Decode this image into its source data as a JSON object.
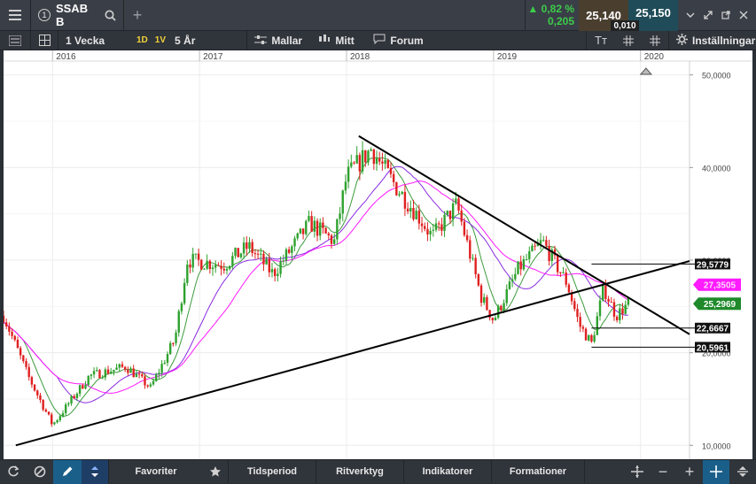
{
  "header": {
    "ticker": "SSAB B",
    "tab_number": "1",
    "change_pct": "▲ 0,82 %",
    "change_abs": "0,205",
    "bid": "25,140",
    "ask": "25,150",
    "spread": "0,010"
  },
  "toolbar": {
    "period_label": "1 Vecka",
    "btn_1d": "1D",
    "btn_1v": "1V",
    "range_label": "5 År",
    "templates_label": "Mallar",
    "mine_label": "Mitt",
    "forum_label": "Forum",
    "settings_label": "Inställningar"
  },
  "bottombar": {
    "favorites": "Favoriter",
    "timeperiod": "Tidsperiod",
    "drawing_tools": "Ritverktyg",
    "indicators": "Indikatorer",
    "formations": "Formationer"
  },
  "colors": {
    "up": "#2ea12e",
    "down": "#e02020",
    "ma_short": "#3c9b3c",
    "ma_mid": "#8a2be2",
    "ma_long": "#ff1aff",
    "price_badge": "#1f8a2a",
    "ma_badge": "#ff1aff"
  },
  "chart_data": {
    "type": "candlestick",
    "x_tick_labels": [
      "2016",
      "2017",
      "2018",
      "2019",
      "2020"
    ],
    "y_tick_labels": [
      "10,0000",
      "20,0000",
      "30,0000",
      "40,0000",
      "50,0000"
    ],
    "ylim": [
      8.5,
      51.5
    ],
    "xlim": [
      "2015-09",
      "2020-05"
    ],
    "key_points": [
      {
        "date": "2015-09",
        "close": 24.0
      },
      {
        "date": "2015-11",
        "close": 17.5
      },
      {
        "date": "2016-01",
        "close": 12.2
      },
      {
        "date": "2016-04",
        "close": 17.5
      },
      {
        "date": "2016-07",
        "close": 18.5
      },
      {
        "date": "2016-09",
        "close": 16.2
      },
      {
        "date": "2016-11",
        "close": 21.5
      },
      {
        "date": "2016-12",
        "close": 30.0
      },
      {
        "date": "2017-03",
        "close": 29.5
      },
      {
        "date": "2017-05",
        "close": 31.5
      },
      {
        "date": "2017-07",
        "close": 28.5
      },
      {
        "date": "2017-10",
        "close": 34.0
      },
      {
        "date": "2017-12",
        "close": 32.0
      },
      {
        "date": "2018-01",
        "close": 39.0
      },
      {
        "date": "2018-03",
        "close": 42.0
      },
      {
        "date": "2018-05",
        "close": 38.0
      },
      {
        "date": "2018-07",
        "close": 34.5
      },
      {
        "date": "2018-08",
        "close": 32.5
      },
      {
        "date": "2018-10",
        "close": 36.0
      },
      {
        "date": "2018-12",
        "close": 26.0
      },
      {
        "date": "2019-01",
        "close": 23.5
      },
      {
        "date": "2019-03",
        "close": 29.0
      },
      {
        "date": "2019-05",
        "close": 32.0
      },
      {
        "date": "2019-07",
        "close": 27.5
      },
      {
        "date": "2019-08",
        "close": 23.0
      },
      {
        "date": "2019-09",
        "close": 21.0
      },
      {
        "date": "2019-10",
        "close": 27.0
      },
      {
        "date": "2019-11",
        "close": 24.0
      },
      {
        "date": "2019-12",
        "close": 25.3
      }
    ],
    "trendlines": [
      {
        "from": [
          "2015-10",
          10.0
        ],
        "to": [
          "2020-05",
          29.9
        ]
      },
      {
        "from": [
          "2018-02",
          43.4
        ],
        "to": [
          "2020-05",
          22.0
        ]
      }
    ],
    "horizontal_levels": [
      {
        "from": "2019-09",
        "value": 29.5779,
        "label": "29,5779"
      },
      {
        "from": "2019-09",
        "value": 22.6667,
        "label": "22,6667"
      },
      {
        "from": "2019-09",
        "value": 20.5961,
        "label": "20,5961"
      }
    ],
    "price_badges": [
      {
        "value": 27.3505,
        "label": "27,3505",
        "kind": "ma"
      },
      {
        "value": 25.2969,
        "label": "25,2969",
        "kind": "last"
      }
    ],
    "grid": true,
    "moving_averages": [
      "short",
      "mid",
      "long"
    ]
  }
}
